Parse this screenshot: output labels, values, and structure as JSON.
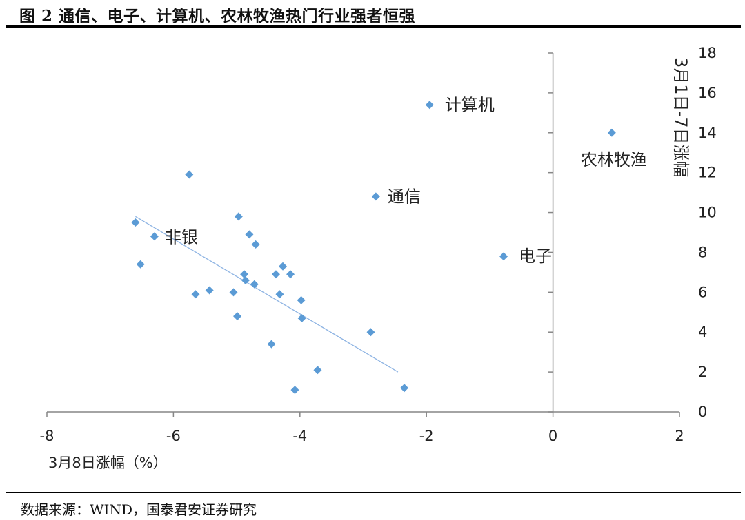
{
  "title": "图 2  通信、电子、计算机、农林牧渔热门行业强者恒强",
  "source": "数据来源：WIND，国泰君安证券研究",
  "chart_data": {
    "type": "scatter",
    "xlabel": "3月8日涨幅（%）",
    "ylabel": "3月1日-7日涨幅",
    "xlim": [
      -8,
      2
    ],
    "ylim": [
      0,
      18
    ],
    "xticks": [
      -8,
      -6,
      -4,
      -2,
      0,
      2
    ],
    "yticks": [
      0,
      2,
      4,
      6,
      8,
      10,
      12,
      14,
      16,
      18
    ],
    "marker_color": "#5B9BD5",
    "trendline_color": "#8EB4E3",
    "points": [
      {
        "x": -1.95,
        "y": 15.4,
        "label": "计算机"
      },
      {
        "x": 0.93,
        "y": 14.0,
        "label": "农林牧渔"
      },
      {
        "x": -2.8,
        "y": 10.8,
        "label": "通信"
      },
      {
        "x": -0.78,
        "y": 7.8,
        "label": "电子"
      },
      {
        "x": -6.3,
        "y": 8.8,
        "label": "非银"
      },
      {
        "x": -5.75,
        "y": 11.9,
        "label": ""
      },
      {
        "x": -6.6,
        "y": 9.5,
        "label": ""
      },
      {
        "x": -6.52,
        "y": 7.4,
        "label": ""
      },
      {
        "x": -5.65,
        "y": 5.9,
        "label": ""
      },
      {
        "x": -5.43,
        "y": 6.1,
        "label": ""
      },
      {
        "x": -4.97,
        "y": 9.8,
        "label": ""
      },
      {
        "x": -4.8,
        "y": 8.9,
        "label": ""
      },
      {
        "x": -4.7,
        "y": 8.4,
        "label": ""
      },
      {
        "x": -4.88,
        "y": 6.9,
        "label": ""
      },
      {
        "x": -4.86,
        "y": 6.6,
        "label": ""
      },
      {
        "x": -4.72,
        "y": 6.4,
        "label": ""
      },
      {
        "x": -5.05,
        "y": 6.0,
        "label": ""
      },
      {
        "x": -4.99,
        "y": 4.8,
        "label": ""
      },
      {
        "x": -4.38,
        "y": 6.9,
        "label": ""
      },
      {
        "x": -4.27,
        "y": 7.3,
        "label": ""
      },
      {
        "x": -4.15,
        "y": 6.9,
        "label": ""
      },
      {
        "x": -4.32,
        "y": 5.9,
        "label": ""
      },
      {
        "x": -3.98,
        "y": 5.6,
        "label": ""
      },
      {
        "x": -3.97,
        "y": 4.7,
        "label": ""
      },
      {
        "x": -4.45,
        "y": 3.4,
        "label": ""
      },
      {
        "x": -3.72,
        "y": 2.1,
        "label": ""
      },
      {
        "x": -4.08,
        "y": 1.1,
        "label": ""
      },
      {
        "x": -2.88,
        "y": 4.0,
        "label": ""
      },
      {
        "x": -2.35,
        "y": 1.2,
        "label": ""
      }
    ],
    "trendline": {
      "x": [
        -6.6,
        -2.45
      ],
      "y": [
        9.8,
        2.0
      ]
    }
  }
}
